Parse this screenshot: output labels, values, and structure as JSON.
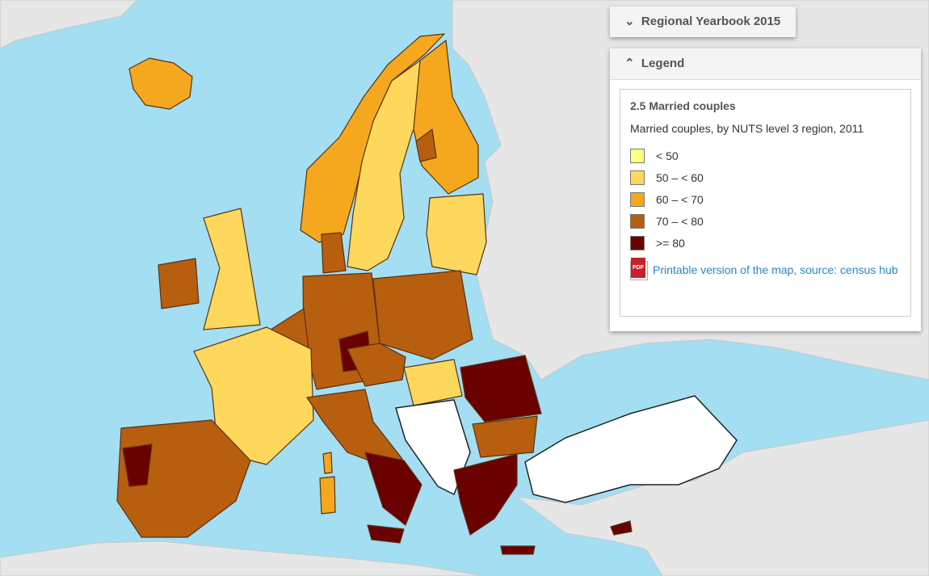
{
  "header": {
    "button": "Regional Yearbook 2015"
  },
  "legend": {
    "heading": "Legend",
    "title": "2.5 Married couples",
    "subtitle": "Married couples, by NUTS level 3 region, 2011",
    "items": [
      {
        "label": "< 50",
        "color": "#ffff80"
      },
      {
        "label": "50 – < 60",
        "color": "#fdd85d"
      },
      {
        "label": "60 – < 70",
        "color": "#f5a81d"
      },
      {
        "label": "70 – < 80",
        "color": "#b85e0f"
      },
      {
        "label": ">= 80",
        "color": "#6b0000"
      }
    ],
    "pdf_icon": "PDF",
    "link_printable": "Printable version of the map",
    "separator": ", ",
    "link_source": "source: census hub"
  }
}
